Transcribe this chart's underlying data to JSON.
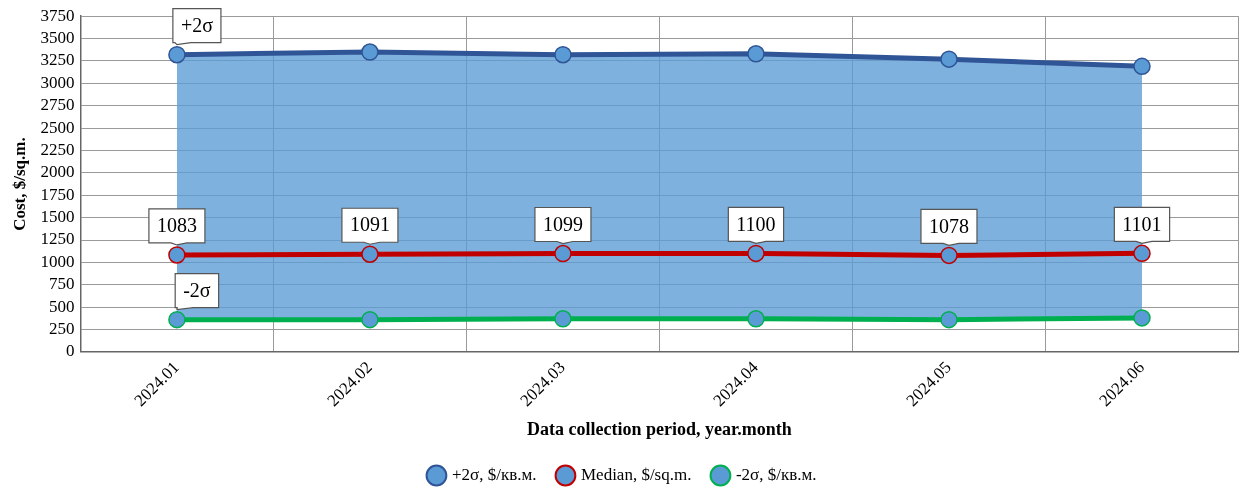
{
  "chart_data": {
    "type": "line",
    "xlabel": "Data collection period, year.month",
    "ylabel": "Cost, $/sq.m.",
    "categories": [
      "2024.01",
      "2024.02",
      "2024.03",
      "2024.04",
      "2024.05",
      "2024.06"
    ],
    "series": [
      {
        "name": "+2σ, $/кв.м.",
        "type": "area",
        "color": "#2f5597",
        "values": [
          3320,
          3350,
          3320,
          3330,
          3270,
          3190
        ]
      },
      {
        "name": "Median, $/sq.m.",
        "color": "#c00000",
        "values": [
          1083,
          1091,
          1099,
          1100,
          1078,
          1101
        ],
        "value_labels": [
          "1083",
          "1091",
          "1099",
          "1100",
          "1078",
          "1101"
        ]
      },
      {
        "name": "-2σ, $/кв.м.",
        "color": "#00b050",
        "values": [
          360,
          360,
          370,
          370,
          360,
          380
        ]
      }
    ],
    "ylim": [
      0,
      3750
    ],
    "yticks": [
      0,
      250,
      500,
      750,
      1000,
      1250,
      1500,
      1750,
      2000,
      2250,
      2500,
      2750,
      3000,
      3250,
      3500,
      3750
    ],
    "grid": true,
    "legend": "bottom",
    "marker": "circle",
    "line_style": "solid",
    "annotations": [
      {
        "text": "+2σ",
        "x": "2024.01",
        "y": 3320
      },
      {
        "text": "-2σ",
        "x": "2024.01",
        "y": 360
      }
    ]
  }
}
